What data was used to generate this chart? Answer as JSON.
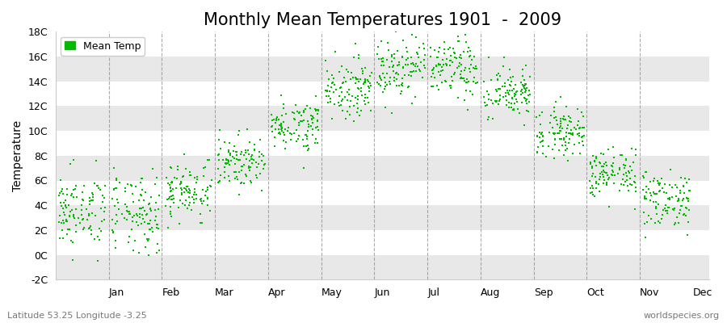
{
  "title": "Monthly Mean Temperatures 1901  -  2009",
  "ylabel": "Temperature",
  "xlabel_labels": [
    "Jan",
    "Feb",
    "Mar",
    "Apr",
    "May",
    "Jun",
    "Jul",
    "Aug",
    "Sep",
    "Oct",
    "Nov",
    "Dec"
  ],
  "ylim": [
    -2,
    18
  ],
  "yticks": [
    -2,
    0,
    2,
    4,
    6,
    8,
    10,
    12,
    14,
    16,
    18
  ],
  "ytick_labels": [
    "-2C",
    "0C",
    "2C",
    "4C",
    "6C",
    "8C",
    "10C",
    "12C",
    "14C",
    "16C",
    "18C"
  ],
  "dot_color": "#00BB00",
  "legend_label": "Mean Temp",
  "footer_left": "Latitude 53.25 Longitude -3.25",
  "footer_right": "worldspecies.org",
  "monthly_means": [
    3.5,
    3.2,
    5.2,
    7.5,
    10.5,
    13.5,
    15.2,
    15.0,
    13.0,
    10.0,
    6.5,
    4.5
  ],
  "monthly_stds": [
    1.5,
    1.6,
    1.2,
    1.0,
    1.0,
    1.2,
    1.3,
    1.2,
    1.1,
    1.0,
    1.0,
    1.2
  ],
  "n_years": 109,
  "background_color": "#ffffff",
  "band_color": "#e8e8e8",
  "grid_color": "#888888",
  "title_fontsize": 15,
  "axis_fontsize": 10,
  "tick_fontsize": 9,
  "footer_fontsize": 8,
  "dot_size": 3,
  "dot_marker": "s"
}
